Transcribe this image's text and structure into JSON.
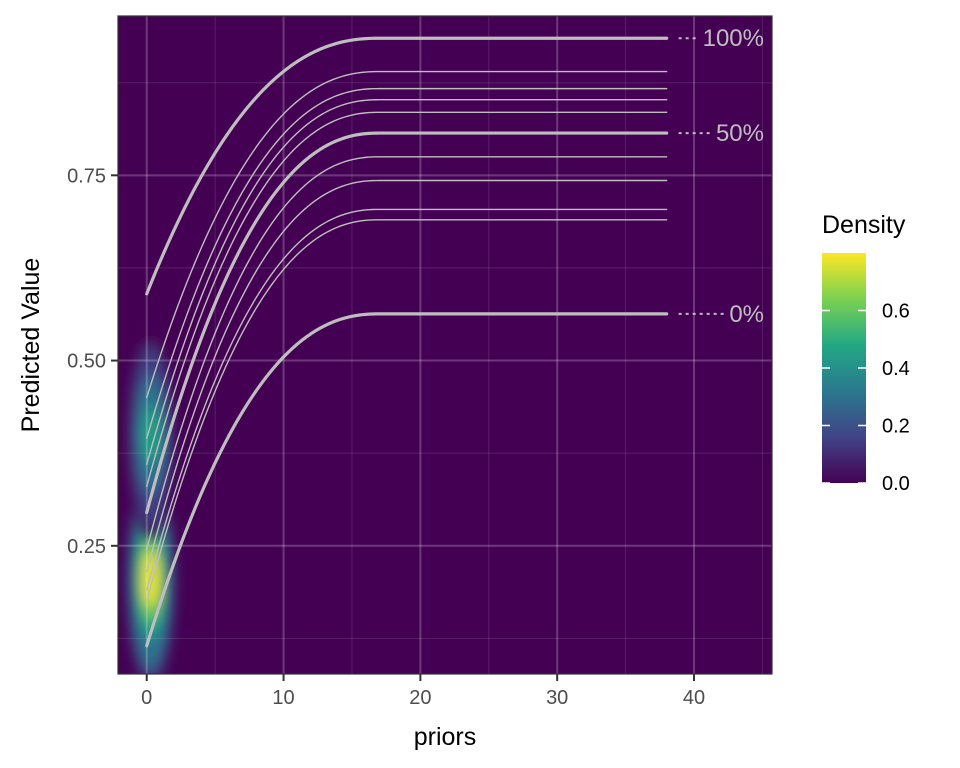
{
  "chart_data": {
    "type": "line",
    "xlabel": "priors",
    "ylabel": "Predicted Value",
    "xlim": [
      -2.1,
      45.7
    ],
    "ylim": [
      0.077,
      0.965
    ],
    "x_ticks": [
      0,
      10,
      20,
      30,
      40
    ],
    "x_tick_labels": [
      "0",
      "10",
      "20",
      "30",
      "40"
    ],
    "y_ticks": [
      0.25,
      0.5,
      0.75
    ],
    "y_tick_labels": [
      "0.25",
      "0.50",
      "0.75"
    ],
    "grid": true,
    "background_color": "#440154",
    "line_color": "#bebebe",
    "curve_x_range": [
      0,
      38
    ],
    "curve_plateau_x": 17,
    "series": [
      {
        "name": "0%",
        "start": 0.115,
        "end": 0.563,
        "bold": true
      },
      {
        "start": 0.175,
        "end": 0.69,
        "bold": false
      },
      {
        "start": 0.19,
        "end": 0.704,
        "bold": false
      },
      {
        "start": 0.215,
        "end": 0.743,
        "bold": false
      },
      {
        "start": 0.245,
        "end": 0.775,
        "bold": false
      },
      {
        "name": "50%",
        "start": 0.295,
        "end": 0.807,
        "bold": true
      },
      {
        "start": 0.33,
        "end": 0.835,
        "bold": false
      },
      {
        "start": 0.36,
        "end": 0.852,
        "bold": false
      },
      {
        "start": 0.395,
        "end": 0.867,
        "bold": false
      },
      {
        "start": 0.45,
        "end": 0.89,
        "bold": false
      },
      {
        "name": "100%",
        "start": 0.59,
        "end": 0.935,
        "bold": true
      }
    ],
    "density_peaks": [
      {
        "x": 0.3,
        "y": 0.205,
        "density": 0.78
      },
      {
        "x": 0.3,
        "y": 0.4,
        "density": 0.45
      }
    ],
    "legend": {
      "title": "Density",
      "position": "right",
      "ticks": [
        0.0,
        0.2,
        0.4,
        0.6
      ],
      "tick_labels": [
        "0.0",
        "0.2",
        "0.4",
        "0.6"
      ],
      "range": [
        0,
        0.8
      ],
      "colors": [
        "#440154",
        "#414487",
        "#2a788e",
        "#22a884",
        "#7ad151",
        "#fde725"
      ]
    }
  }
}
